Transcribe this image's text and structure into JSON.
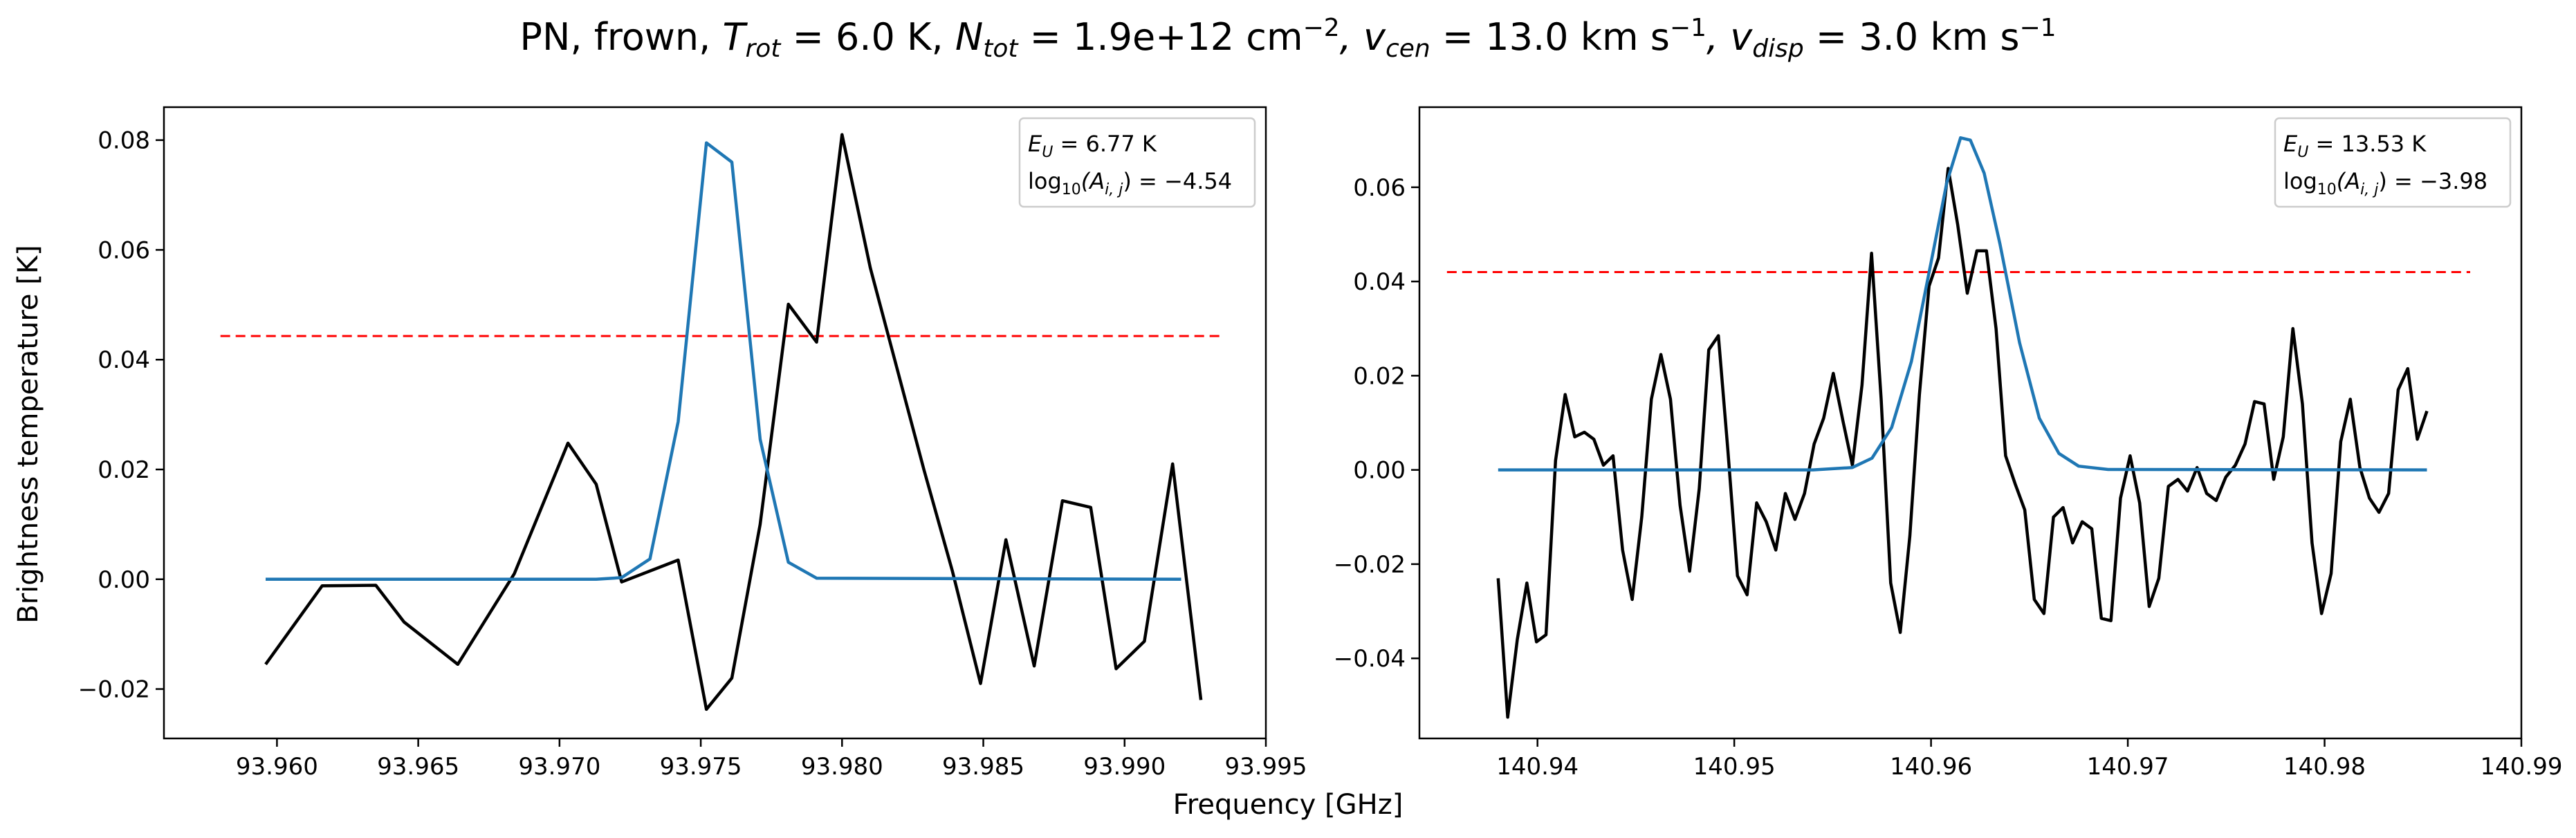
{
  "figure": {
    "title": "PN, frown, T_rot = 6.0 K, N_tot = 1.9e+12 cm^-2, v_cen = 13.0 km s^-1, v_disp = 3.0 km s^-1",
    "title_parts": {
      "species": "PN, frown, ",
      "trot_sym": "T",
      "trot_sub": "rot",
      "trot_val": " =  6.0 K, ",
      "ntot_sym": "N",
      "ntot_sub": "tot",
      "ntot_val": " =  1.9e+12 cm",
      "ntot_exp": "−2",
      "vcen_sym": ", v",
      "vcen_sub": "cen",
      "vcen_val": " =  13.0 km s",
      "vcen_exp": "−1",
      "vdisp_sym": ", v",
      "vdisp_sub": "disp",
      "vdisp_val": " =  3.0 km s",
      "vdisp_exp": "−1"
    },
    "xlabel": "Frequency [GHz]",
    "ylabel": "Brightness temperature [K]",
    "colors": {
      "observed": "#000000",
      "model": "#1f77b4",
      "threshold": "#ff0000"
    }
  },
  "chart_data": [
    {
      "type": "line",
      "xlim": [
        93.956,
        93.995
      ],
      "ylim": [
        -0.029,
        0.086
      ],
      "xticks": [
        93.96,
        93.965,
        93.97,
        93.975,
        93.98,
        93.985,
        93.99,
        93.995
      ],
      "xtick_labels": [
        "93.960",
        "93.965",
        "93.970",
        "93.975",
        "93.980",
        "93.985",
        "93.990",
        "93.995"
      ],
      "yticks": [
        -0.02,
        0.0,
        0.02,
        0.04,
        0.06,
        0.08
      ],
      "ytick_labels": [
        "−0.02",
        "0.00",
        "0.02",
        "0.04",
        "0.06",
        "0.08"
      ],
      "legend": {
        "line1_sym": "E",
        "line1_sub": "U",
        "line1_val": " = 6.77 K",
        "line2_pre": "log",
        "line2_sub1": "10",
        "line2_mid": "(A",
        "line2_sub2": "i, j",
        "line2_val": ") = −4.54",
        "placement": "top-right"
      },
      "threshold": {
        "y": 0.0443,
        "x": [
          93.958,
          93.9935
        ]
      },
      "series": [
        {
          "role": "observed",
          "x": [
            93.9596,
            93.9616,
            93.9635,
            93.9645,
            93.9664,
            93.9684,
            93.9703,
            93.9713,
            93.9722,
            93.9742,
            93.9752,
            93.9761,
            93.9771,
            93.9781,
            93.9791,
            93.98,
            93.981,
            93.9829,
            93.9839,
            93.9849,
            93.9858,
            93.9868,
            93.9878,
            93.9888,
            93.9897,
            93.9907,
            93.9917,
            93.9927
          ],
          "y": [
            -0.0155,
            -0.0012,
            -0.0011,
            -0.0078,
            -0.0155,
            0.001,
            0.0248,
            0.0173,
            -0.0005,
            0.0035,
            -0.0237,
            -0.018,
            0.01,
            0.0501,
            0.0432,
            0.081,
            0.0567,
            0.0199,
            0.0016,
            -0.019,
            0.0072,
            -0.0158,
            0.0143,
            0.0131,
            -0.0163,
            -0.0113,
            0.021,
            -0.022
          ]
        },
        {
          "role": "model",
          "x": [
            93.9596,
            93.9713,
            93.9722,
            93.9732,
            93.9742,
            93.9752,
            93.9761,
            93.9771,
            93.9781,
            93.9791,
            93.992
          ],
          "y": [
            0.0,
            0.0,
            0.0003,
            0.0037,
            0.0287,
            0.0795,
            0.076,
            0.0255,
            0.0031,
            0.0002,
            0.0
          ]
        }
      ]
    },
    {
      "type": "line",
      "xlim": [
        140.934,
        140.99
      ],
      "ylim": [
        -0.057,
        0.077
      ],
      "xticks": [
        140.94,
        140.95,
        140.96,
        140.97,
        140.98,
        140.99
      ],
      "xtick_labels": [
        "140.94",
        "140.95",
        "140.96",
        "140.97",
        "140.98",
        "140.99"
      ],
      "yticks": [
        -0.04,
        -0.02,
        0.0,
        0.02,
        0.04,
        0.06
      ],
      "ytick_labels": [
        "−0.04",
        "−0.02",
        "0.00",
        "0.02",
        "0.04",
        "0.06"
      ],
      "legend": {
        "line1_sym": "E",
        "line1_sub": "U",
        "line1_val": " = 13.53 K",
        "line2_pre": "log",
        "line2_sub1": "10",
        "line2_mid": "(A",
        "line2_sub2": "i, j",
        "line2_val": ") = −3.98",
        "placement": "top-right"
      },
      "threshold": {
        "y": 0.042,
        "x": [
          140.9354,
          140.9874
        ]
      },
      "series": [
        {
          "role": "observed",
          "y": [
            -0.023,
            -0.0525,
            -0.036,
            -0.024,
            -0.0365,
            -0.035,
            0.002,
            0.016,
            0.007,
            0.008,
            0.0065,
            0.001,
            0.003,
            -0.017,
            -0.0275,
            -0.01,
            0.015,
            0.0245,
            0.015,
            -0.0075,
            -0.0215,
            -0.004,
            0.0255,
            0.0285,
            0.004,
            -0.0225,
            -0.0265,
            -0.007,
            -0.011,
            -0.017,
            -0.005,
            -0.0105,
            -0.005,
            0.0055,
            0.011,
            0.0205,
            0.0105,
            0.001,
            0.018,
            0.046,
            0.015,
            -0.024,
            -0.0345,
            -0.014,
            0.016,
            0.039,
            0.045,
            0.064,
            0.052,
            0.0375,
            0.0465,
            0.0465,
            0.03,
            0.003,
            -0.003,
            -0.0085,
            -0.0275,
            -0.0305,
            -0.01,
            -0.008,
            -0.0155,
            -0.011,
            -0.0125,
            -0.0315,
            -0.032,
            -0.006,
            0.003,
            -0.007,
            -0.029,
            -0.023,
            -0.0035,
            -0.002,
            -0.0045,
            0.0005,
            -0.005,
            -0.0065,
            -0.0015,
            0.001,
            0.0055,
            0.0145,
            0.014,
            -0.002,
            0.007,
            0.03,
            0.014,
            -0.0155,
            -0.0305,
            -0.022,
            0.006,
            0.015,
            0.0005,
            -0.006,
            -0.009,
            -0.005,
            0.017,
            0.0215,
            0.0065,
            0.0125
          ],
          "x_start": 140.938,
          "x_end": 140.9852
        },
        {
          "role": "model",
          "x": [
            140.938,
            140.954,
            140.956,
            140.957,
            140.958,
            140.959,
            140.96,
            140.9608,
            140.9615,
            140.962,
            140.9627,
            140.9635,
            140.9645,
            140.9655,
            140.9665,
            140.9675,
            140.969,
            140.9852
          ],
          "y": [
            0.0,
            0.0,
            0.0005,
            0.0025,
            0.009,
            0.023,
            0.044,
            0.061,
            0.0705,
            0.07,
            0.063,
            0.048,
            0.027,
            0.011,
            0.0035,
            0.0008,
            0.0001,
            0.0
          ]
        }
      ]
    }
  ]
}
